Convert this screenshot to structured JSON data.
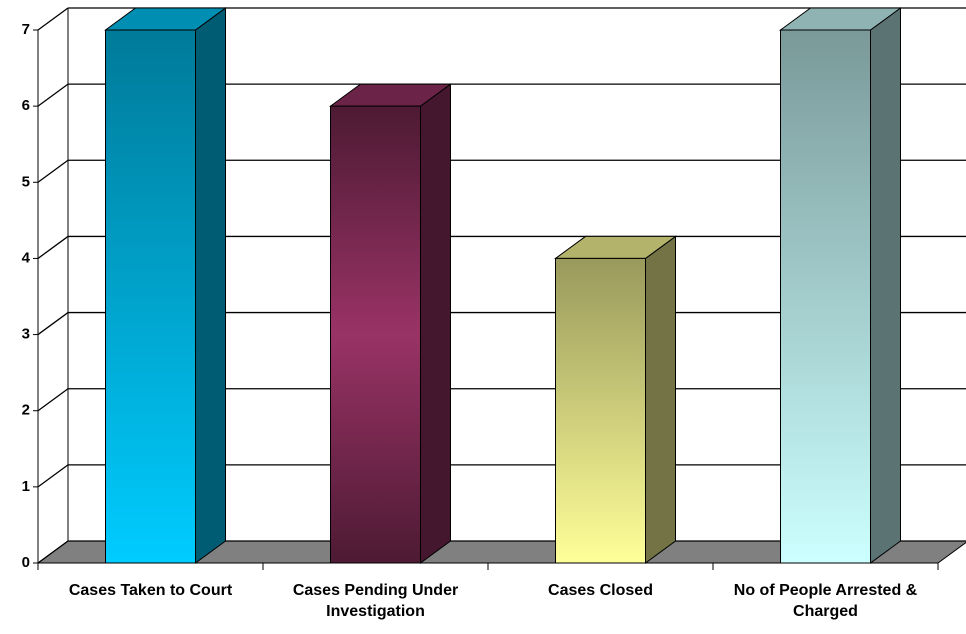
{
  "chart_data": {
    "type": "bar3d",
    "categories": [
      "Cases Taken to Court",
      "Cases Pending Under Investigation",
      "Cases Closed",
      "No of People Arrested & Charged"
    ],
    "values": [
      7,
      6,
      4,
      7
    ],
    "colors": [
      "#00ccff",
      "#993366",
      "#ffff99",
      "#ccffff"
    ],
    "ylim": [
      0,
      7
    ],
    "yticks": [
      0,
      1,
      2,
      3,
      4,
      5,
      6,
      7
    ],
    "grid": true
  }
}
